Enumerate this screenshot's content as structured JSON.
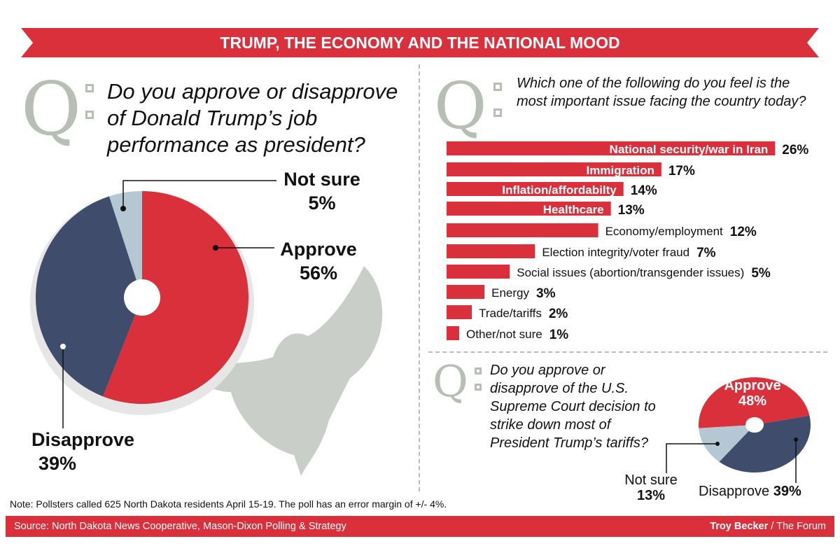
{
  "title": "TRUMP, THE ECONOMY AND THE NATIONAL MOOD",
  "colors": {
    "red": "#d9303c",
    "navy": "#404c6c",
    "light": "#b5c7d3",
    "gray": "#b7bfb5"
  },
  "chart_data": [
    {
      "type": "pie",
      "question": "Do you approve or disapprove of Donald Trump’s job performance as president?",
      "slices": [
        {
          "label": "Approve",
          "value": 56,
          "display": "56%"
        },
        {
          "label": "Disapprove",
          "value": 39,
          "display": "39%"
        },
        {
          "label": "Not sure",
          "value": 5,
          "display": "5%"
        }
      ]
    },
    {
      "type": "bar",
      "question": "Which one of the following do you feel is the most important issue facing the country today?",
      "categories": [
        "National security/war in Iran",
        "Immigration",
        "Inflation/affordabilty",
        "Healthcare",
        "Economy/employment",
        "Election integrity/voter fraud",
        "Social issues (abortion/transgender issues)",
        "Energy",
        "Trade/tariffs",
        "Other/not sure"
      ],
      "values": [
        26,
        17,
        14,
        13,
        12,
        7,
        5,
        3,
        2,
        1
      ],
      "display": [
        "26%",
        "17%",
        "14%",
        "13%",
        "12%",
        "7%",
        "5%",
        "3%",
        "2%",
        "1%"
      ]
    },
    {
      "type": "pie",
      "question": "Do you approve or disapprove of the U.S. Supreme Court decision to strike down most of President Trump’s tariffs?",
      "slices": [
        {
          "label": "Approve",
          "value": 48,
          "display": "48%"
        },
        {
          "label": "Disapprove",
          "value": 39,
          "display": "39%"
        },
        {
          "label": "Not sure",
          "value": 13,
          "display": "13%"
        }
      ]
    }
  ],
  "q_letter": "Q",
  "note": "Note: Pollsters called 625 North Dakota residents April 15-19. The poll has an error margin of +/- 4%.",
  "source": "Source: North Dakota News Cooperative, Mason-Dixon Polling & Strategy",
  "credit_name": "Troy Becker",
  "credit_org": " / The Forum"
}
